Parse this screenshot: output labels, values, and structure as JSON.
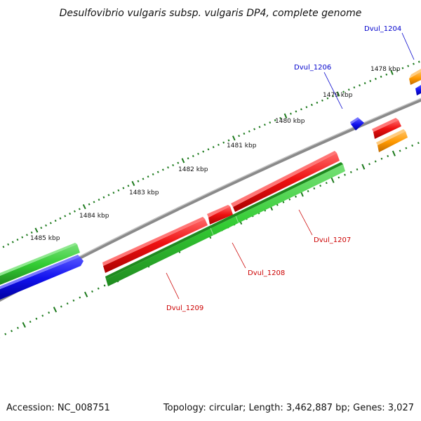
{
  "title": "Desulfovibrio vulgaris subsp. vulgaris DP4, complete genome",
  "footer": {
    "accession": "Accession: NC_008751",
    "stats": "Topology: circular; Length: 3,462,887 bp; Genes: 3,027"
  },
  "colors": {
    "backbone": "#8a8a8a",
    "tick": "#1d7a1d",
    "label_forward": "#0000cc",
    "label_reverse": "#cc0000",
    "red_feature": "#ee1111",
    "green_feature": "#33cc33",
    "blue_feature": "#1111ee",
    "orange_feature": "#ff9900"
  },
  "scale_labels": [
    "1478 kbp",
    "1479 kbp",
    "1480 kbp",
    "1481 kbp",
    "1482 kbp",
    "1483 kbp",
    "1484 kbp",
    "1485 kbp"
  ],
  "gene_labels": {
    "dvul_1204": "Dvul_1204",
    "dvul_1206": "Dvul_1206",
    "dvul_1207": "Dvul_1207",
    "dvul_1208": "Dvul_1208",
    "dvul_1209": "Dvul_1209"
  }
}
